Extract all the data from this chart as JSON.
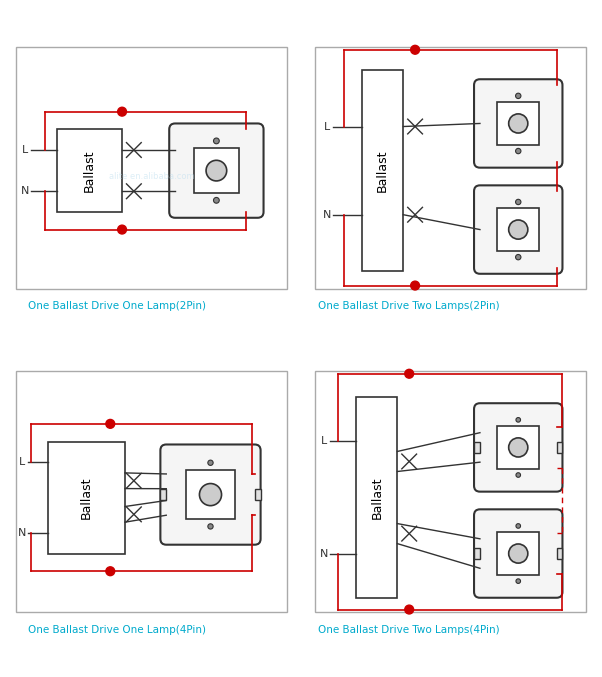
{
  "bg_color": "#ffffff",
  "border_color": "#cccccc",
  "wire_color_red": "#cc0000",
  "wire_color_dark": "#333333",
  "lamp_body_color": "#f0f0f0",
  "lamp_border_color": "#333333",
  "ballast_fill": "#ffffff",
  "ballast_border": "#333333",
  "label_color": "#00aacc",
  "text_color": "#000000",
  "watermark_color": "#aaccdd",
  "diagrams": [
    {
      "title": "One Ballast Drive One Lamp(2Pin)",
      "type": "2pin_one"
    },
    {
      "title": "One Ballast Drive Two Lamps(2Pin)",
      "type": "2pin_two"
    },
    {
      "title": "One Ballast Drive One Lamp(4Pin)",
      "type": "4pin_one"
    },
    {
      "title": "One Ballast Drive Two Lamps(4Pin)",
      "type": "4pin_two"
    }
  ]
}
